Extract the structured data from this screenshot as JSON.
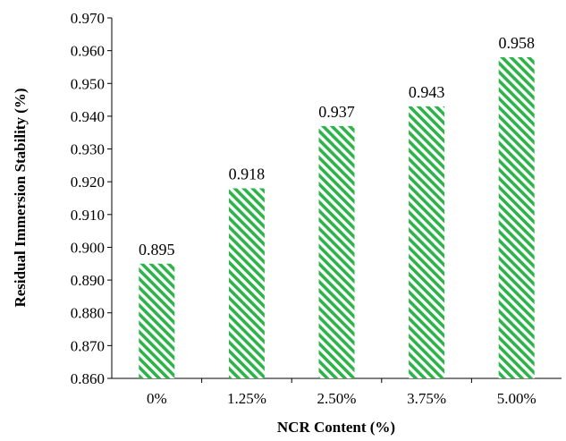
{
  "chart_data": {
    "type": "bar",
    "categories": [
      "0%",
      "1.25%",
      "2.50%",
      "3.75%",
      "5.00%"
    ],
    "values": [
      0.895,
      0.918,
      0.937,
      0.943,
      0.958
    ],
    "data_labels": [
      "0.895",
      "0.918",
      "0.937",
      "0.943",
      "0.958"
    ],
    "xlabel": "NCR Content (%)",
    "ylabel": "Residual Immersion Stability (%)",
    "ylim": [
      0.86,
      0.97
    ],
    "yticks": [
      "0.860",
      "0.870",
      "0.880",
      "0.890",
      "0.900",
      "0.910",
      "0.920",
      "0.930",
      "0.940",
      "0.950",
      "0.960",
      "0.970"
    ],
    "grid": false,
    "legend": "none",
    "bar_pattern": "diagonal-hatch",
    "colors": {
      "bar": "#2db34a",
      "axis": "#000000",
      "text": "#000000"
    }
  }
}
